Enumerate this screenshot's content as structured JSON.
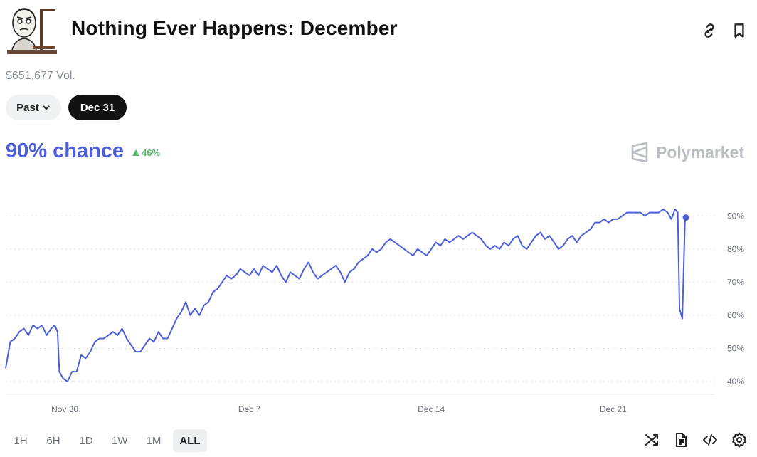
{
  "header": {
    "title": "Nothing Ever Happens: December",
    "volume": "$651,677 Vol."
  },
  "filters": {
    "past_label": "Past",
    "date_label": "Dec 31"
  },
  "outcome": {
    "chance_text": "90% chance",
    "change_text": "46%",
    "change_direction": "up",
    "change_color": "#58b96a"
  },
  "brand": {
    "name": "Polymarket"
  },
  "range_buttons": [
    {
      "label": "1H",
      "active": false
    },
    {
      "label": "6H",
      "active": false
    },
    {
      "label": "1D",
      "active": false
    },
    {
      "label": "1W",
      "active": false
    },
    {
      "label": "1M",
      "active": false
    },
    {
      "label": "ALL",
      "active": true
    }
  ],
  "tools": [
    "shuffle-icon",
    "document-icon",
    "code-icon",
    "settings-icon"
  ],
  "colors": {
    "accent": "#4d5fd8",
    "positive": "#58b96a",
    "brand_gray": "#b9bcc2"
  },
  "chart_data": {
    "type": "line",
    "xlabel": "",
    "ylabel": "",
    "x_ticks": [
      "Nov 30",
      "Dec 7",
      "Dec 14",
      "Dec 21"
    ],
    "y_ticks": [
      "40%",
      "50%",
      "60%",
      "70%",
      "80%",
      "90%"
    ],
    "ylim": [
      37,
      95
    ],
    "grid": true,
    "series": [
      {
        "color": "#4d5fd8",
        "points": [
          [
            0,
            44
          ],
          [
            0.5,
            52
          ],
          [
            1.0,
            53
          ],
          [
            1.5,
            55
          ],
          [
            2.0,
            56
          ],
          [
            2.5,
            54
          ],
          [
            3.0,
            57
          ],
          [
            3.5,
            56
          ],
          [
            4.0,
            57
          ],
          [
            4.5,
            54
          ],
          [
            5.0,
            56
          ],
          [
            5.4,
            57
          ],
          [
            5.7,
            55
          ],
          [
            5.9,
            43
          ],
          [
            6.3,
            41
          ],
          [
            6.8,
            40
          ],
          [
            7.3,
            43
          ],
          [
            7.8,
            43
          ],
          [
            8.3,
            48
          ],
          [
            8.8,
            47
          ],
          [
            9.3,
            49
          ],
          [
            9.8,
            52
          ],
          [
            10.3,
            53
          ],
          [
            10.8,
            53
          ],
          [
            11.3,
            54
          ],
          [
            11.8,
            55
          ],
          [
            12.3,
            54
          ],
          [
            12.8,
            56
          ],
          [
            13.3,
            53
          ],
          [
            13.8,
            51
          ],
          [
            14.3,
            49
          ],
          [
            14.8,
            49
          ],
          [
            15.3,
            51
          ],
          [
            15.8,
            53
          ],
          [
            16.3,
            52
          ],
          [
            16.8,
            55
          ],
          [
            17.3,
            53
          ],
          [
            17.8,
            53
          ],
          [
            18.3,
            56
          ],
          [
            18.8,
            59
          ],
          [
            19.3,
            61
          ],
          [
            19.8,
            64
          ],
          [
            20.3,
            60
          ],
          [
            20.8,
            62
          ],
          [
            21.3,
            60
          ],
          [
            21.8,
            63
          ],
          [
            22.3,
            64
          ],
          [
            22.8,
            67
          ],
          [
            23.3,
            68
          ],
          [
            23.8,
            70
          ],
          [
            24.3,
            72
          ],
          [
            24.8,
            71
          ],
          [
            25.3,
            72
          ],
          [
            25.8,
            74
          ],
          [
            26.3,
            73
          ],
          [
            26.8,
            72
          ],
          [
            27.3,
            74
          ],
          [
            27.8,
            72
          ],
          [
            28.3,
            75
          ],
          [
            28.8,
            74
          ],
          [
            29.3,
            73
          ],
          [
            29.8,
            75
          ],
          [
            30.3,
            72
          ],
          [
            30.8,
            70
          ],
          [
            31.3,
            73
          ],
          [
            31.8,
            72
          ],
          [
            32.3,
            71
          ],
          [
            32.8,
            74
          ],
          [
            33.3,
            76
          ],
          [
            33.8,
            73
          ],
          [
            34.3,
            71
          ],
          [
            34.8,
            72
          ],
          [
            35.3,
            73
          ],
          [
            35.8,
            74
          ],
          [
            36.3,
            75
          ],
          [
            36.8,
            73
          ],
          [
            37.3,
            70
          ],
          [
            37.8,
            73
          ],
          [
            38.3,
            74
          ],
          [
            38.8,
            76
          ],
          [
            39.3,
            77
          ],
          [
            39.8,
            78
          ],
          [
            40.3,
            80
          ],
          [
            40.8,
            79
          ],
          [
            41.3,
            80
          ],
          [
            41.8,
            82
          ],
          [
            42.3,
            83
          ],
          [
            42.8,
            82
          ],
          [
            43.3,
            81
          ],
          [
            43.8,
            80
          ],
          [
            44.3,
            79
          ],
          [
            44.8,
            78
          ],
          [
            45.3,
            80
          ],
          [
            45.8,
            79
          ],
          [
            46.3,
            78
          ],
          [
            46.8,
            80
          ],
          [
            47.3,
            82
          ],
          [
            47.8,
            81
          ],
          [
            48.3,
            83
          ],
          [
            48.8,
            82
          ],
          [
            49.3,
            83
          ],
          [
            49.8,
            84
          ],
          [
            50.3,
            83
          ],
          [
            50.8,
            84
          ],
          [
            51.3,
            85
          ],
          [
            51.8,
            84
          ],
          [
            52.3,
            83
          ],
          [
            52.8,
            81
          ],
          [
            53.3,
            80
          ],
          [
            53.8,
            81
          ],
          [
            54.3,
            80
          ],
          [
            54.8,
            82
          ],
          [
            55.3,
            81
          ],
          [
            55.8,
            83
          ],
          [
            56.3,
            84
          ],
          [
            56.8,
            81
          ],
          [
            57.3,
            80
          ],
          [
            57.8,
            82
          ],
          [
            58.3,
            84
          ],
          [
            58.8,
            85
          ],
          [
            59.3,
            83
          ],
          [
            59.8,
            84
          ],
          [
            60.3,
            82
          ],
          [
            60.8,
            80
          ],
          [
            61.3,
            81
          ],
          [
            61.8,
            83
          ],
          [
            62.3,
            84
          ],
          [
            62.8,
            82
          ],
          [
            63.3,
            84
          ],
          [
            63.8,
            85
          ],
          [
            64.3,
            86
          ],
          [
            64.8,
            88
          ],
          [
            65.3,
            88
          ],
          [
            65.8,
            89
          ],
          [
            66.3,
            88
          ],
          [
            66.8,
            89
          ],
          [
            67.3,
            89
          ],
          [
            67.8,
            90
          ],
          [
            68.3,
            91
          ],
          [
            68.8,
            91
          ],
          [
            69.3,
            91
          ],
          [
            69.8,
            91
          ],
          [
            70.3,
            90
          ],
          [
            70.8,
            91
          ],
          [
            71.3,
            91
          ],
          [
            71.8,
            91
          ],
          [
            72.3,
            92
          ],
          [
            72.8,
            91
          ],
          [
            73.2,
            89
          ],
          [
            73.6,
            92
          ],
          [
            73.9,
            91
          ],
          [
            74.1,
            62
          ],
          [
            74.4,
            59
          ],
          [
            74.7,
            89
          ],
          [
            74.8,
            89.5
          ]
        ]
      }
    ],
    "x_tick_positions": [
      6.5,
      26.8,
      46.8,
      66.8
    ],
    "x_range": [
      0,
      78
    ],
    "end_marker": true
  }
}
